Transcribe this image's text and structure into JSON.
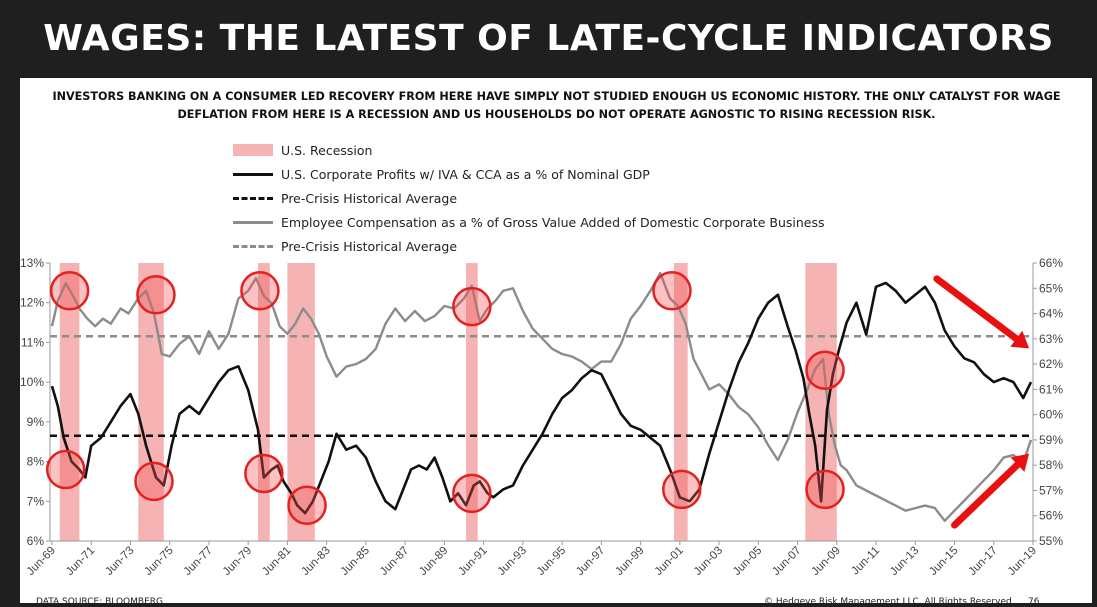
{
  "title": "WAGES: THE LATEST OF LATE-CYCLE INDICATORS",
  "subtitle": "INVESTORS BANKING ON A CONSUMER LED RECOVERY FROM HERE HAVE SIMPLY NOT STUDIED ENOUGH US ECONOMIC HISTORY. THE ONLY CATALYST FOR WAGE DEFLATION FROM HERE IS A RECESSION AND US HOUSEHOLDS DO NOT OPERATE AGNOSTIC TO RISING RECESSION RISK.",
  "footer": {
    "source": "DATA SOURCE: BLOOMBERG",
    "copyright": "© Hedgeye Risk Management LLC. All Rights Reserved.",
    "page": "76"
  },
  "colors": {
    "recession": "#f6b3b3",
    "profits": "#111111",
    "compensation": "#8c8c8c",
    "circle": "#e52020",
    "arrow": "#e81010"
  },
  "chart_data": {
    "type": "line",
    "legend": [
      {
        "label": "U.S. Recession",
        "style": "band"
      },
      {
        "label": "U.S. Corporate Profits w/ IVA & CCA as a % of Nominal GDP",
        "style": "solid-black"
      },
      {
        "label": "Pre-Crisis Historical Average",
        "style": "dashed-black"
      },
      {
        "label": "Employee Compensation as a % of Gross Value Added of Domestic Corporate Business",
        "style": "solid-gray"
      },
      {
        "label": "Pre-Crisis Historical Average",
        "style": "dashed-gray"
      }
    ],
    "x_range": [
      1969.4,
      2019.5
    ],
    "x_ticks": [
      "Jun-69",
      "Jun-71",
      "Jun-73",
      "Jun-75",
      "Jun-77",
      "Jun-79",
      "Jun-81",
      "Jun-83",
      "Jun-85",
      "Jun-87",
      "Jun-89",
      "Jun-91",
      "Jun-93",
      "Jun-95",
      "Jun-97",
      "Jun-99",
      "Jun-01",
      "Jun-03",
      "Jun-05",
      "Jun-07",
      "Jun-09",
      "Jun-11",
      "Jun-13",
      "Jun-15",
      "Jun-17",
      "Jun-19"
    ],
    "y_left": {
      "min": 6,
      "max": 13,
      "ticks": [
        "6%",
        "7%",
        "8%",
        "9%",
        "10%",
        "11%",
        "12%",
        "13%"
      ]
    },
    "y_right": {
      "min": 55,
      "max": 66,
      "ticks": [
        "55%",
        "56%",
        "57%",
        "58%",
        "59%",
        "60%",
        "61%",
        "62%",
        "63%",
        "64%",
        "65%",
        "66%"
      ]
    },
    "recessions": [
      [
        1969.9,
        1970.9
      ],
      [
        1973.9,
        1975.2
      ],
      [
        1980.0,
        1980.6
      ],
      [
        1981.5,
        1982.9
      ],
      [
        1990.6,
        1991.2
      ],
      [
        2001.2,
        2001.9
      ],
      [
        2007.9,
        2009.5
      ]
    ],
    "series": [
      {
        "name": "U.S. Corporate Profits w/ IVA & CCA as a % of Nominal GDP",
        "axis": "left",
        "x": [
          1969.5,
          1969.8,
          1970.1,
          1970.5,
          1970.9,
          1971.2,
          1971.5,
          1972.0,
          1972.5,
          1973.0,
          1973.5,
          1973.9,
          1974.3,
          1974.8,
          1975.2,
          1975.6,
          1976.0,
          1976.5,
          1977.0,
          1977.5,
          1978.0,
          1978.5,
          1979.0,
          1979.5,
          1980.0,
          1980.3,
          1980.7,
          1981.0,
          1981.3,
          1981.7,
          1982.0,
          1982.4,
          1982.8,
          1983.2,
          1983.6,
          1984.0,
          1984.5,
          1985.0,
          1985.5,
          1986.0,
          1986.5,
          1987.0,
          1987.4,
          1987.8,
          1988.2,
          1988.6,
          1989.0,
          1989.4,
          1989.8,
          1990.2,
          1990.6,
          1991.0,
          1991.3,
          1991.7,
          1992.0,
          1992.5,
          1993.0,
          1993.5,
          1994.0,
          1994.5,
          1995.0,
          1995.5,
          1996.0,
          1996.5,
          1997.0,
          1997.5,
          1998.0,
          1998.5,
          1999.0,
          1999.5,
          2000.0,
          2000.5,
          2001.0,
          2001.5,
          2002.0,
          2002.5,
          2003.0,
          2003.5,
          2004.0,
          2004.5,
          2005.0,
          2005.5,
          2006.0,
          2006.5,
          2007.0,
          2007.4,
          2007.8,
          2008.1,
          2008.4,
          2008.7,
          2009.0,
          2009.3,
          2009.6,
          2010.0,
          2010.5,
          2011.0,
          2011.5,
          2012.0,
          2012.5,
          2013.0,
          2013.5,
          2014.0,
          2014.5,
          2015.0,
          2015.5,
          2016.0,
          2016.5,
          2017.0,
          2017.5,
          2018.0,
          2018.5,
          2019.0,
          2019.4
        ],
        "values": [
          9.9,
          9.4,
          8.6,
          8.0,
          7.8,
          7.6,
          8.4,
          8.6,
          9.0,
          9.4,
          9.7,
          9.2,
          8.4,
          7.6,
          7.4,
          8.4,
          9.2,
          9.4,
          9.2,
          9.6,
          10.0,
          10.3,
          10.4,
          9.8,
          8.8,
          7.6,
          7.8,
          7.9,
          7.5,
          7.2,
          6.9,
          6.7,
          7.0,
          7.5,
          8.0,
          8.7,
          8.3,
          8.4,
          8.1,
          7.5,
          7.0,
          6.8,
          7.3,
          7.8,
          7.9,
          7.8,
          8.1,
          7.6,
          7.0,
          7.2,
          6.9,
          7.4,
          7.5,
          7.2,
          7.1,
          7.3,
          7.4,
          7.9,
          8.3,
          8.7,
          9.2,
          9.6,
          9.8,
          10.1,
          10.3,
          10.2,
          9.7,
          9.2,
          8.9,
          8.8,
          8.6,
          8.4,
          7.8,
          7.1,
          7.0,
          7.3,
          8.2,
          9.0,
          9.8,
          10.5,
          11.0,
          11.6,
          12.0,
          12.2,
          11.4,
          10.8,
          10.1,
          9.2,
          8.4,
          7.0,
          9.3,
          10.2,
          10.8,
          11.5,
          12.0,
          11.2,
          12.4,
          12.5,
          12.3,
          12.0,
          12.2,
          12.4,
          12.0,
          11.3,
          10.9,
          10.6,
          10.5,
          10.2,
          10.0,
          10.1,
          10.0,
          9.6,
          10.0
        ],
        "color": "#111111"
      },
      {
        "name": "Employee Compensation as a % of Gross Value Added of Domestic Corporate Business",
        "axis": "right",
        "x": [
          1969.5,
          1969.8,
          1970.2,
          1970.5,
          1970.9,
          1971.3,
          1971.7,
          1972.1,
          1972.5,
          1973.0,
          1973.4,
          1973.9,
          1974.3,
          1974.7,
          1975.1,
          1975.5,
          1976.0,
          1976.5,
          1977.0,
          1977.5,
          1978.0,
          1978.5,
          1979.0,
          1979.5,
          1979.9,
          1980.3,
          1980.7,
          1981.1,
          1981.5,
          1981.9,
          1982.3,
          1982.7,
          1983.1,
          1983.5,
          1984.0,
          1984.5,
          1985.0,
          1985.5,
          1986.0,
          1986.5,
          1987.0,
          1987.5,
          1988.0,
          1988.5,
          1989.0,
          1989.5,
          1990.0,
          1990.5,
          1990.9,
          1991.3,
          1991.7,
          1992.1,
          1992.5,
          1993.0,
          1993.5,
          1994.0,
          1994.5,
          1995.0,
          1995.5,
          1996.0,
          1996.5,
          1997.0,
          1997.5,
          1998.0,
          1998.5,
          1999.0,
          1999.5,
          2000.0,
          2000.5,
          2001.0,
          2001.4,
          2001.8,
          2002.2,
          2002.6,
          2003.0,
          2003.5,
          2004.0,
          2004.5,
          2005.0,
          2005.5,
          2006.0,
          2006.5,
          2007.0,
          2007.5,
          2008.0,
          2008.4,
          2008.8,
          2009.1,
          2009.4,
          2009.7,
          2010.0,
          2010.5,
          2011.0,
          2011.5,
          2012.0,
          2012.5,
          2013.0,
          2013.5,
          2014.0,
          2014.5,
          2015.0,
          2015.5,
          2016.0,
          2016.5,
          2017.0,
          2017.5,
          2018.0,
          2018.5,
          2019.0,
          2019.4
        ],
        "values": [
          63.5,
          64.5,
          65.2,
          64.8,
          64.2,
          63.8,
          63.5,
          63.8,
          63.6,
          64.2,
          64.0,
          64.6,
          64.9,
          64.0,
          62.4,
          62.3,
          62.8,
          63.1,
          62.4,
          63.3,
          62.6,
          63.2,
          64.6,
          64.9,
          65.4,
          64.7,
          64.4,
          63.5,
          63.2,
          63.6,
          64.2,
          63.8,
          63.2,
          62.3,
          61.5,
          61.9,
          62.0,
          62.2,
          62.6,
          63.6,
          64.2,
          63.7,
          64.1,
          63.7,
          63.9,
          64.3,
          64.2,
          64.6,
          65.1,
          63.7,
          64.2,
          64.5,
          64.9,
          65.0,
          64.1,
          63.4,
          63.0,
          62.6,
          62.4,
          62.3,
          62.1,
          61.8,
          62.1,
          62.1,
          62.8,
          63.8,
          64.3,
          64.9,
          65.6,
          64.6,
          64.3,
          63.6,
          62.2,
          61.6,
          61.0,
          61.2,
          60.8,
          60.3,
          60.0,
          59.5,
          58.8,
          58.2,
          59.0,
          60.1,
          61.0,
          61.8,
          62.2,
          60.0,
          58.8,
          58.0,
          57.8,
          57.2,
          57.0,
          56.8,
          56.6,
          56.4,
          56.2,
          56.3,
          56.4,
          56.3,
          55.8,
          56.2,
          56.6,
          57.0,
          57.4,
          57.8,
          58.3,
          58.4,
          58.1,
          59.0
        ],
        "color": "#8c8c8c"
      }
    ],
    "reference_lines": [
      {
        "name": "Pre-Crisis Historical Average",
        "axis": "left",
        "value": 8.65,
        "color": "#111111"
      },
      {
        "name": "Pre-Crisis Historical Average",
        "axis": "right",
        "value": 63.1,
        "color": "#8c8c8c"
      }
    ],
    "circles": [
      {
        "axis": "left",
        "x": 1970.4,
        "y": 12.3
      },
      {
        "axis": "left",
        "x": 1974.8,
        "y": 12.2
      },
      {
        "axis": "left",
        "x": 1980.1,
        "y": 12.3
      },
      {
        "axis": "left",
        "x": 1990.9,
        "y": 11.9
      },
      {
        "axis": "left",
        "x": 2001.1,
        "y": 12.3
      },
      {
        "axis": "left",
        "x": 2008.9,
        "y": 10.3
      },
      {
        "axis": "left",
        "x": 1970.2,
        "y": 7.8
      },
      {
        "axis": "left",
        "x": 1974.7,
        "y": 7.5
      },
      {
        "axis": "left",
        "x": 1980.3,
        "y": 7.7
      },
      {
        "axis": "left",
        "x": 1982.5,
        "y": 6.9
      },
      {
        "axis": "left",
        "x": 1990.9,
        "y": 7.2
      },
      {
        "axis": "left",
        "x": 2001.6,
        "y": 7.3
      },
      {
        "axis": "left",
        "x": 2008.9,
        "y": 7.3
      }
    ],
    "arrows": [
      {
        "axis": "left",
        "from": [
          2014.6,
          12.6
        ],
        "to": [
          2019.3,
          10.85
        ]
      },
      {
        "axis": "left",
        "from": [
          2015.5,
          6.4
        ],
        "to": [
          2019.3,
          8.2
        ]
      }
    ]
  }
}
